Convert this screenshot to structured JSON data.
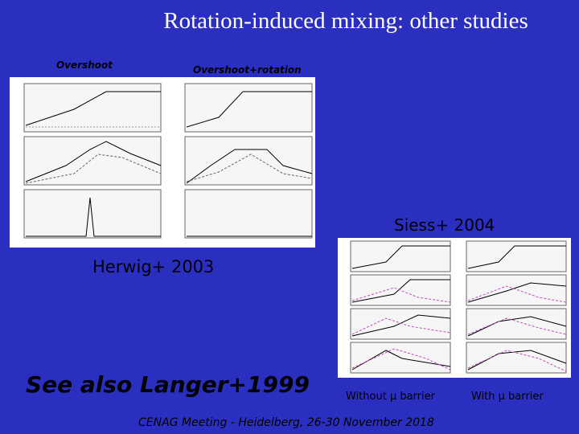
{
  "slide": {
    "title": "Rotation-induced mixing: other studies",
    "label_overshoot": "Overshoot",
    "label_overshoot_rotation": "Overshoot+rotation",
    "caption_siess": "Siess+ 2004",
    "caption_herwig": "Herwig+ 2003",
    "caption_langer": "See also Langer+1999",
    "label_without": "Without μ barrier",
    "label_with": "With μ barrier",
    "footer": "CENAG Meeting - Heidelberg, 26-30 November 2018"
  }
}
